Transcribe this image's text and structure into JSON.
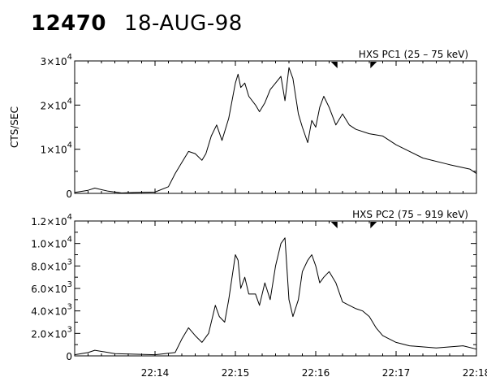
{
  "header": {
    "event_number": "12470",
    "date": "18-AUG-98"
  },
  "chart_data": [
    {
      "type": "line",
      "title": "HXS PC1 (25 – 75 keV)",
      "ylabel": "CTS/SEC",
      "xlabel": "",
      "ylim": [
        0,
        30000
      ],
      "xlim": [
        "22:13:00",
        "22:18:00"
      ],
      "x_ticks": [
        "22:14",
        "22:15",
        "22:16",
        "22:17",
        "22:18"
      ],
      "y_ticks": [
        {
          "value": 0,
          "mantissa": "0",
          "exp": ""
        },
        {
          "value": 10000,
          "mantissa": "1×10",
          "exp": "4"
        },
        {
          "value": 20000,
          "mantissa": "2×10",
          "exp": "4"
        },
        {
          "value": 30000,
          "mantissa": "3×10",
          "exp": "4"
        }
      ],
      "markers": [
        "22:16:15",
        "22:16:42"
      ],
      "grid": false,
      "series": [
        {
          "x": [
            "22:13:00",
            "22:13:10",
            "22:13:15",
            "22:13:25",
            "22:13:35",
            "22:13:45",
            "22:14:00",
            "22:14:10",
            "22:14:15",
            "22:14:20",
            "22:14:25",
            "22:14:30",
            "22:14:35",
            "22:14:38",
            "22:14:42",
            "22:14:46",
            "22:14:50",
            "22:14:55",
            "22:15:00",
            "22:15:02",
            "22:15:04",
            "22:15:07",
            "22:15:10",
            "22:15:15",
            "22:15:18",
            "22:15:22",
            "22:15:26",
            "22:15:30",
            "22:15:34",
            "22:15:37",
            "22:15:40",
            "22:15:43",
            "22:15:47",
            "22:15:50",
            "22:15:54",
            "22:15:57",
            "22:16:00",
            "22:16:03",
            "22:16:06",
            "22:16:10",
            "22:16:15",
            "22:16:20",
            "22:16:25",
            "22:16:30",
            "22:16:40",
            "22:16:50",
            "22:17:00",
            "22:17:20",
            "22:17:40",
            "22:17:55",
            "22:18:00"
          ],
          "y": [
            200,
            700,
            1200,
            500,
            100,
            200,
            300,
            1500,
            4500,
            7000,
            9500,
            9000,
            7500,
            9000,
            13000,
            15500,
            12000,
            17000,
            25000,
            27000,
            24000,
            25000,
            22000,
            20000,
            18500,
            20500,
            23500,
            25000,
            26500,
            21000,
            28500,
            26000,
            18000,
            15000,
            11500,
            16500,
            15000,
            19500,
            22000,
            19500,
            15500,
            18000,
            15500,
            14500,
            13500,
            13000,
            11000,
            8000,
            6500,
            5500,
            4500
          ]
        }
      ]
    },
    {
      "type": "line",
      "title": "HXS PC2 (75 – 919 keV)",
      "ylabel": "",
      "xlabel": "",
      "ylim": [
        0,
        12000
      ],
      "xlim": [
        "22:13:00",
        "22:18:00"
      ],
      "x_ticks": [
        "22:14",
        "22:15",
        "22:16",
        "22:17",
        "22:18"
      ],
      "y_ticks": [
        {
          "value": 0,
          "mantissa": "0",
          "exp": ""
        },
        {
          "value": 2000,
          "mantissa": "2.0×10",
          "exp": "3"
        },
        {
          "value": 4000,
          "mantissa": "4.0×10",
          "exp": "3"
        },
        {
          "value": 6000,
          "mantissa": "6.0×10",
          "exp": "3"
        },
        {
          "value": 8000,
          "mantissa": "8.0×10",
          "exp": "3"
        },
        {
          "value": 10000,
          "mantissa": "1.0×10",
          "exp": "4"
        },
        {
          "value": 12000,
          "mantissa": "1.2×10",
          "exp": "4"
        }
      ],
      "markers": [
        "22:16:15",
        "22:16:42"
      ],
      "grid": false,
      "series": [
        {
          "x": [
            "22:13:00",
            "22:13:10",
            "22:13:15",
            "22:13:30",
            "22:14:00",
            "22:14:15",
            "22:14:20",
            "22:14:25",
            "22:14:30",
            "22:14:35",
            "22:14:40",
            "22:14:45",
            "22:14:48",
            "22:14:52",
            "22:14:55",
            "22:15:00",
            "22:15:02",
            "22:15:04",
            "22:15:07",
            "22:15:10",
            "22:15:15",
            "22:15:18",
            "22:15:22",
            "22:15:26",
            "22:15:30",
            "22:15:34",
            "22:15:37",
            "22:15:40",
            "22:15:43",
            "22:15:47",
            "22:15:50",
            "22:15:54",
            "22:15:57",
            "22:16:00",
            "22:16:03",
            "22:16:06",
            "22:16:10",
            "22:16:15",
            "22:16:20",
            "22:16:25",
            "22:16:30",
            "22:16:35",
            "22:16:40",
            "22:16:45",
            "22:16:50",
            "22:17:00",
            "22:17:10",
            "22:17:30",
            "22:17:50",
            "22:18:00"
          ],
          "y": [
            100,
            300,
            500,
            200,
            100,
            300,
            1500,
            2500,
            1800,
            1200,
            2000,
            4500,
            3500,
            3000,
            5000,
            9000,
            8500,
            6000,
            7000,
            5500,
            5500,
            4500,
            6500,
            5000,
            8000,
            10000,
            10500,
            5000,
            3500,
            5000,
            7500,
            8500,
            9000,
            8000,
            6500,
            7000,
            7500,
            6500,
            4800,
            4500,
            4200,
            4000,
            3500,
            2500,
            1800,
            1200,
            900,
            700,
            900,
            600
          ]
        }
      ]
    }
  ]
}
